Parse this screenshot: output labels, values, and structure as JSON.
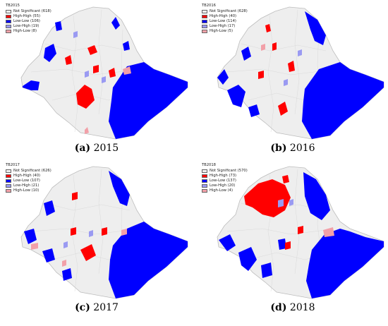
{
  "colors": {
    "not_significant": "#eeeeee",
    "high_high": "#ff0000",
    "low_low": "#0000ff",
    "low_high": "#9a9af2",
    "high_low": "#f2a0a8",
    "boundary": "#bdbdbd"
  },
  "panels": [
    {
      "id": "a",
      "legend_title": "TB2015",
      "legend": [
        {
          "label": "Not Significant (618)",
          "cls": "not_significant"
        },
        {
          "label": "High-High (55)",
          "cls": "high_high"
        },
        {
          "label": "Low-Low (106)",
          "cls": "low_low"
        },
        {
          "label": "Low-High (19)",
          "cls": "low_high"
        },
        {
          "label": "High-Low (8)",
          "cls": "high_low"
        }
      ],
      "caption_letter": "(a)",
      "caption_year": "2015"
    },
    {
      "id": "b",
      "legend_title": "TB2016",
      "legend": [
        {
          "label": "Not Significant (628)",
          "cls": "not_significant"
        },
        {
          "label": "High-High (40)",
          "cls": "high_high"
        },
        {
          "label": "Low-Low (114)",
          "cls": "low_low"
        },
        {
          "label": "Low-High (17)",
          "cls": "low_high"
        },
        {
          "label": "High-Low (5)",
          "cls": "high_low"
        }
      ],
      "caption_letter": "(b)",
      "caption_year": "2016"
    },
    {
      "id": "c",
      "legend_title": "TB2017",
      "legend": [
        {
          "label": "Not Significant (626)",
          "cls": "not_significant"
        },
        {
          "label": "High-High (40)",
          "cls": "high_high"
        },
        {
          "label": "Low-Low (107)",
          "cls": "low_low"
        },
        {
          "label": "Low-High (21)",
          "cls": "low_high"
        },
        {
          "label": "High-Low (10)",
          "cls": "high_low"
        }
      ],
      "caption_letter": "(c)",
      "caption_year": "2017"
    },
    {
      "id": "d",
      "legend_title": "TB2018",
      "legend": [
        {
          "label": "Not Significant (570)",
          "cls": "not_significant"
        },
        {
          "label": "High-High (73)",
          "cls": "high_high"
        },
        {
          "label": "Low-Low (137)",
          "cls": "low_low"
        },
        {
          "label": "Low-High (20)",
          "cls": "low_high"
        },
        {
          "label": "High-Low (4)",
          "cls": "high_low"
        }
      ],
      "caption_letter": "(d)",
      "caption_year": "2018"
    }
  ]
}
